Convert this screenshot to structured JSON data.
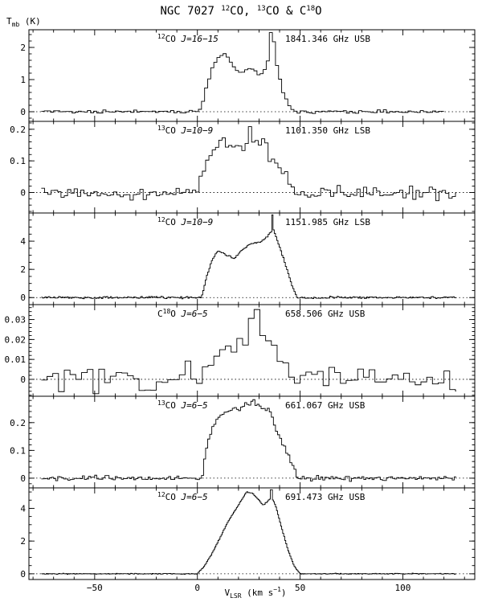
{
  "chart_data": {
    "type": "line",
    "step": true,
    "title_parts": [
      "NGC 7027",
      "12",
      "CO, ",
      "13",
      "CO & C",
      "18",
      "O"
    ],
    "ylabel_parts": [
      "T",
      "mb",
      " (K)"
    ],
    "xlabel_parts": [
      "V",
      "LSR",
      " (km s",
      "−1",
      ")"
    ],
    "xlim": [
      -82,
      135
    ],
    "xticks": [
      -50,
      0,
      50,
      100
    ],
    "x_minor_step": 10,
    "x_start": -76,
    "x_end": 126,
    "panels": [
      {
        "iso": "12",
        "mol": "CO",
        "trans": " J=16−15",
        "freq": "1841.346 GHz USB",
        "ylim": [
          -0.3,
          2.55
        ],
        "yticks": [
          0,
          1,
          2
        ],
        "ytick_labels": [
          "0",
          "1",
          "2"
        ],
        "y_minor_step": 0.2,
        "x_end": 120,
        "bin": 1.5,
        "noise": 0.035,
        "peak_spike": [
          36.0,
          0.55
        ],
        "profile": [
          [
            -76,
            0
          ],
          [
            0,
            0
          ],
          [
            2,
            0.1
          ],
          [
            4,
            0.65
          ],
          [
            7,
            1.3
          ],
          [
            10,
            1.65
          ],
          [
            13,
            1.8
          ],
          [
            17,
            1.5
          ],
          [
            20,
            1.25
          ],
          [
            23,
            1.2
          ],
          [
            26,
            1.4
          ],
          [
            29,
            1.2
          ],
          [
            32,
            1.15
          ],
          [
            35,
            1.7
          ],
          [
            37,
            2.3
          ],
          [
            39,
            1.3
          ],
          [
            42,
            0.55
          ],
          [
            45,
            0.15
          ],
          [
            48,
            0
          ],
          [
            126,
            0
          ]
        ]
      },
      {
        "iso": "13",
        "mol": "CO",
        "trans": " J=10−9",
        "freq": "1101.350 GHz LSB",
        "ylim": [
          -0.065,
          0.225
        ],
        "yticks": [
          0,
          0.1,
          0.2
        ],
        "ytick_labels": [
          "0",
          "0.1",
          "0.2"
        ],
        "y_minor_step": 0.02,
        "bin": 1.6,
        "noise": 0.014,
        "peak_spike": [
          25.5,
          0.04
        ],
        "profile": [
          [
            -76,
            0
          ],
          [
            0,
            0
          ],
          [
            2,
            0.06
          ],
          [
            5,
            0.11
          ],
          [
            8,
            0.135
          ],
          [
            12,
            0.16
          ],
          [
            17,
            0.14
          ],
          [
            21,
            0.15
          ],
          [
            24,
            0.15
          ],
          [
            27,
            0.17
          ],
          [
            31,
            0.15
          ],
          [
            35,
            0.12
          ],
          [
            39,
            0.09
          ],
          [
            43,
            0.05
          ],
          [
            46,
            0.02
          ],
          [
            49,
            0
          ],
          [
            126,
            0
          ]
        ]
      },
      {
        "iso": "12",
        "mol": "CO",
        "trans": " J=10−9",
        "freq": "1151.985 GHz LSB",
        "ylim": [
          -0.5,
          6.0
        ],
        "yticks": [
          0,
          2,
          4
        ],
        "ytick_labels": [
          "0",
          "2",
          "4"
        ],
        "y_minor_step": 0.5,
        "bin": 0.6,
        "noise": 0.05,
        "peak_spike": [
          36.5,
          1.0
        ],
        "profile": [
          [
            -76,
            0
          ],
          [
            2,
            0
          ],
          [
            4,
            1.2
          ],
          [
            7,
            2.6
          ],
          [
            10,
            3.3
          ],
          [
            14,
            3.0
          ],
          [
            18,
            2.8
          ],
          [
            22,
            3.4
          ],
          [
            26,
            3.8
          ],
          [
            30,
            3.9
          ],
          [
            34,
            4.3
          ],
          [
            37,
            4.9
          ],
          [
            40,
            3.6
          ],
          [
            43,
            2.3
          ],
          [
            46,
            0.9
          ],
          [
            48.5,
            0
          ],
          [
            126,
            0
          ]
        ]
      },
      {
        "iso": "",
        "mol": "C",
        "mol_sup": "18",
        "mol_tail": "O",
        "trans": " J=6−5",
        "freq": "658.506 GHz USB",
        "ylim": [
          -0.0085,
          0.0375
        ],
        "yticks": [
          0,
          0.01,
          0.02,
          0.03
        ],
        "ytick_labels": [
          "0",
          "0.01",
          "0.02",
          "0.03"
        ],
        "y_minor_step": 0.002,
        "bin": 2.8,
        "noise": 0.0048,
        "peak_spike": [
          28.0,
          0.008
        ],
        "profile": [
          [
            -76,
            0
          ],
          [
            0,
            0
          ],
          [
            3,
            0.006
          ],
          [
            7,
            0.01
          ],
          [
            12,
            0.014
          ],
          [
            16,
            0.016
          ],
          [
            20,
            0.019
          ],
          [
            24,
            0.022
          ],
          [
            28,
            0.026
          ],
          [
            31,
            0.025
          ],
          [
            35,
            0.02
          ],
          [
            40,
            0.011
          ],
          [
            44,
            0.004
          ],
          [
            46,
            0
          ],
          [
            126,
            0
          ]
        ]
      },
      {
        "iso": "13",
        "mol": "CO",
        "trans": " J=6−5",
        "freq": "661.067 GHz USB",
        "ylim": [
          -0.035,
          0.295
        ],
        "yticks": [
          0,
          0.1,
          0.2
        ],
        "ytick_labels": [
          "0",
          "0.1",
          "0.2"
        ],
        "y_minor_step": 0.02,
        "bin": 1.0,
        "noise": 0.006,
        "peak_spike": [
          27,
          0.01
        ],
        "profile": [
          [
            -76,
            0
          ],
          [
            2,
            0
          ],
          [
            4,
            0.09
          ],
          [
            7,
            0.18
          ],
          [
            11,
            0.23
          ],
          [
            15,
            0.24
          ],
          [
            19,
            0.25
          ],
          [
            23,
            0.26
          ],
          [
            27,
            0.27
          ],
          [
            31,
            0.26
          ],
          [
            35,
            0.24
          ],
          [
            38,
            0.18
          ],
          [
            42,
            0.12
          ],
          [
            46,
            0.05
          ],
          [
            49,
            0
          ],
          [
            126,
            0
          ]
        ]
      },
      {
        "iso": "12",
        "mol": "CO",
        "trans": " J=6−5",
        "freq": "691.473 GHz USB",
        "ylim": [
          -0.35,
          5.25
        ],
        "yticks": [
          0,
          2,
          4
        ],
        "ytick_labels": [
          "0",
          "2",
          "4"
        ],
        "y_minor_step": 0.5,
        "bin": 0.5,
        "noise": 0.02,
        "peak_spike": [
          36.0,
          0.5
        ],
        "profile": [
          [
            -76,
            0
          ],
          [
            0,
            0
          ],
          [
            3,
            0.4
          ],
          [
            7,
            1.2
          ],
          [
            11,
            2.2
          ],
          [
            15,
            3.2
          ],
          [
            19,
            4.0
          ],
          [
            22,
            4.6
          ],
          [
            24,
            5.0
          ],
          [
            27,
            4.9
          ],
          [
            30,
            4.5
          ],
          [
            32,
            4.2
          ],
          [
            34,
            4.4
          ],
          [
            36,
            4.7
          ],
          [
            38,
            4.2
          ],
          [
            41,
            2.8
          ],
          [
            44,
            1.5
          ],
          [
            47,
            0.5
          ],
          [
            50,
            0
          ],
          [
            126,
            0
          ]
        ]
      }
    ]
  }
}
